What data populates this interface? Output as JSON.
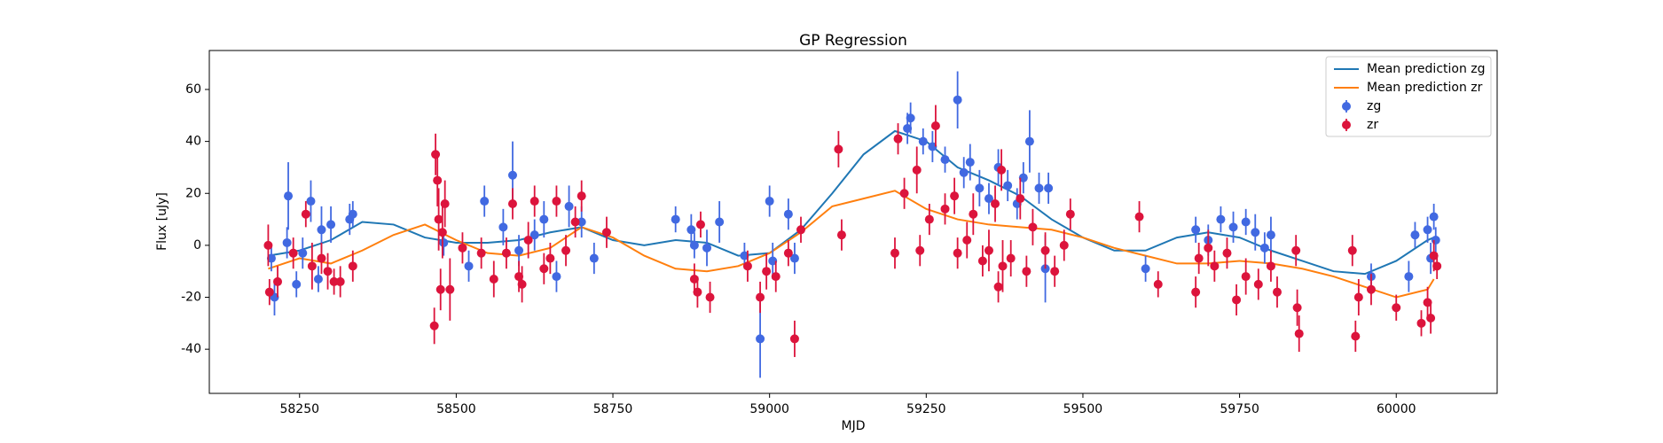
{
  "chart_data": {
    "type": "scatter",
    "title": "GP Regression",
    "x_label": "MJD",
    "y_label": "Flux [uJy]",
    "xlim": [
      58106,
      60161
    ],
    "ylim": [
      -57,
      75
    ],
    "xticks": [
      58250,
      58500,
      58750,
      59000,
      59250,
      59500,
      59750,
      60000
    ],
    "yticks": [
      -40,
      -20,
      0,
      20,
      40,
      60
    ],
    "legend": "upper right",
    "series": [
      {
        "name": "Mean prediction zg",
        "type": "line",
        "color": "#1f77b4",
        "x": [
          58200,
          58250,
          58300,
          58350,
          58400,
          58450,
          58500,
          58550,
          58600,
          58650,
          58700,
          58750,
          58800,
          58850,
          58900,
          58950,
          59000,
          59050,
          59100,
          59150,
          59200,
          59250,
          59300,
          59350,
          59400,
          59450,
          59500,
          59550,
          59600,
          59650,
          59700,
          59750,
          59800,
          59850,
          59900,
          59950,
          60000,
          60050,
          60060
        ],
        "values": [
          -4,
          -2,
          2,
          9,
          8,
          3,
          1,
          1,
          2,
          5,
          7,
          2,
          0,
          2,
          1,
          -4,
          -3,
          6,
          20,
          35,
          44,
          40,
          30,
          25,
          19,
          10,
          3,
          -2,
          -2,
          3,
          5,
          3,
          -2,
          -6,
          -10,
          -11,
          -6,
          2,
          3
        ]
      },
      {
        "name": "Mean prediction zr",
        "type": "line",
        "color": "#ff7f0e",
        "x": [
          58200,
          58250,
          58300,
          58350,
          58400,
          58450,
          58500,
          58550,
          58600,
          58650,
          58700,
          58750,
          58800,
          58850,
          58900,
          58950,
          59000,
          59050,
          59100,
          59150,
          59200,
          59250,
          59300,
          59350,
          59400,
          59450,
          59500,
          59550,
          59600,
          59650,
          59700,
          59750,
          59800,
          59850,
          59900,
          59950,
          60000,
          60050,
          60060
        ],
        "values": [
          -9,
          -5,
          -7,
          -2,
          4,
          8,
          2,
          -3,
          -4,
          -1,
          7,
          3,
          -4,
          -9,
          -10,
          -8,
          -3,
          5,
          15,
          18,
          21,
          14,
          10,
          8,
          7,
          6,
          3,
          -1,
          -4,
          -7,
          -7,
          -6,
          -7,
          -9,
          -12,
          -16,
          -20,
          -17,
          -13
        ]
      },
      {
        "name": "zg",
        "type": "errorbar",
        "color": "#4169e1",
        "x": [
          58205,
          58210,
          58230,
          58232,
          58245,
          58255,
          58268,
          58280,
          58285,
          58300,
          58330,
          58335,
          58480,
          58520,
          58545,
          58575,
          58590,
          58600,
          58625,
          58640,
          58660,
          58680,
          58700,
          58720,
          58850,
          58875,
          58880,
          58900,
          58920,
          58960,
          58985,
          59000,
          59005,
          59030,
          59040,
          59220,
          59225,
          59245,
          59260,
          59280,
          59300,
          59310,
          59320,
          59335,
          59350,
          59365,
          59380,
          59395,
          59405,
          59415,
          59430,
          59440,
          59445,
          59600,
          59680,
          59700,
          59720,
          59740,
          59760,
          59775,
          59790,
          59800,
          59960,
          60020,
          60030,
          60050,
          60055,
          60060,
          60063
        ],
        "values": [
          -5,
          -20,
          1,
          19,
          -15,
          -3,
          17,
          -13,
          6,
          8,
          10,
          12,
          1,
          -8,
          17,
          7,
          27,
          -2,
          4,
          10,
          -12,
          15,
          9,
          -5,
          10,
          6,
          0,
          -1,
          9,
          -4,
          -36,
          17,
          -6,
          12,
          -5,
          45,
          49,
          40,
          38,
          33,
          56,
          28,
          32,
          22,
          18,
          30,
          23,
          16,
          26,
          40,
          22,
          -9,
          22,
          -9,
          6,
          2,
          10,
          7,
          9,
          5,
          -1,
          4,
          -12,
          -12,
          4,
          6,
          -5,
          11,
          2
        ],
        "errors": [
          5,
          7,
          6,
          13,
          5,
          6,
          8,
          5,
          9,
          7,
          6,
          5,
          5,
          6,
          6,
          7,
          13,
          6,
          6,
          7,
          6,
          8,
          6,
          6,
          5,
          6,
          5,
          7,
          8,
          5,
          15,
          6,
          7,
          6,
          6,
          6,
          6,
          5,
          6,
          5,
          11,
          6,
          7,
          7,
          6,
          7,
          6,
          6,
          6,
          12,
          6,
          13,
          6,
          5,
          5,
          6,
          5,
          6,
          5,
          7,
          6,
          7,
          5,
          6,
          5,
          5,
          6,
          5,
          5
        ]
      },
      {
        "name": "zr",
        "type": "errorbar",
        "color": "#dc143c",
        "x": [
          58200,
          58202,
          58215,
          58240,
          58260,
          58270,
          58285,
          58295,
          58305,
          58315,
          58335,
          58465,
          58467,
          58470,
          58472,
          58475,
          58478,
          58482,
          58490,
          58510,
          58540,
          58560,
          58580,
          58590,
          58600,
          58605,
          58615,
          58625,
          58640,
          58650,
          58660,
          58675,
          58690,
          58700,
          58740,
          58880,
          58885,
          58890,
          58905,
          58965,
          58985,
          58995,
          59010,
          59030,
          59040,
          59050,
          59110,
          59115,
          59200,
          59205,
          59215,
          59235,
          59240,
          59255,
          59265,
          59280,
          59295,
          59300,
          59315,
          59325,
          59340,
          59350,
          59360,
          59365,
          59370,
          59372,
          59385,
          59400,
          59410,
          59420,
          59440,
          59455,
          59470,
          59480,
          59590,
          59620,
          59680,
          59685,
          59700,
          59710,
          59730,
          59745,
          59760,
          59780,
          59800,
          59810,
          59840,
          59842,
          59845,
          59930,
          59935,
          59940,
          59960,
          60000,
          60040,
          60050,
          60055,
          60060,
          60065
        ],
        "values": [
          0,
          -18,
          -14,
          -3,
          12,
          -8,
          -5,
          -10,
          -14,
          -14,
          -8,
          -31,
          35,
          25,
          10,
          -17,
          5,
          16,
          -17,
          -1,
          -3,
          -13,
          -3,
          16,
          -12,
          -15,
          2,
          17,
          -9,
          -5,
          17,
          -2,
          9,
          19,
          5,
          -13,
          -18,
          8,
          -20,
          -8,
          -20,
          -10,
          -12,
          -3,
          -36,
          6,
          37,
          4,
          -3,
          41,
          20,
          29,
          -2,
          10,
          46,
          14,
          19,
          -3,
          2,
          12,
          -6,
          -2,
          16,
          -16,
          29,
          -8,
          -5,
          18,
          -10,
          7,
          -2,
          -10,
          0,
          12,
          11,
          -15,
          -18,
          -5,
          -1,
          -8,
          -3,
          -21,
          -12,
          -15,
          -8,
          -18,
          -2,
          -24,
          -34,
          -2,
          -35,
          -20,
          -17,
          -24,
          -30,
          -22,
          -28,
          -4,
          -8
        ],
        "errors": [
          8,
          5,
          6,
          6,
          5,
          9,
          6,
          7,
          5,
          6,
          6,
          7,
          8,
          10,
          12,
          8,
          10,
          9,
          12,
          6,
          6,
          7,
          6,
          6,
          6,
          7,
          7,
          6,
          6,
          6,
          6,
          6,
          6,
          6,
          6,
          6,
          6,
          5,
          6,
          6,
          6,
          7,
          6,
          5,
          7,
          5,
          7,
          6,
          6,
          6,
          6,
          9,
          6,
          6,
          8,
          6,
          7,
          6,
          7,
          8,
          6,
          8,
          7,
          6,
          8,
          10,
          7,
          8,
          6,
          7,
          7,
          6,
          6,
          6,
          6,
          5,
          6,
          6,
          7,
          6,
          6,
          6,
          7,
          6,
          6,
          6,
          6,
          7,
          7,
          6,
          6,
          7,
          6,
          5,
          5,
          6,
          6,
          6,
          5
        ]
      }
    ]
  }
}
